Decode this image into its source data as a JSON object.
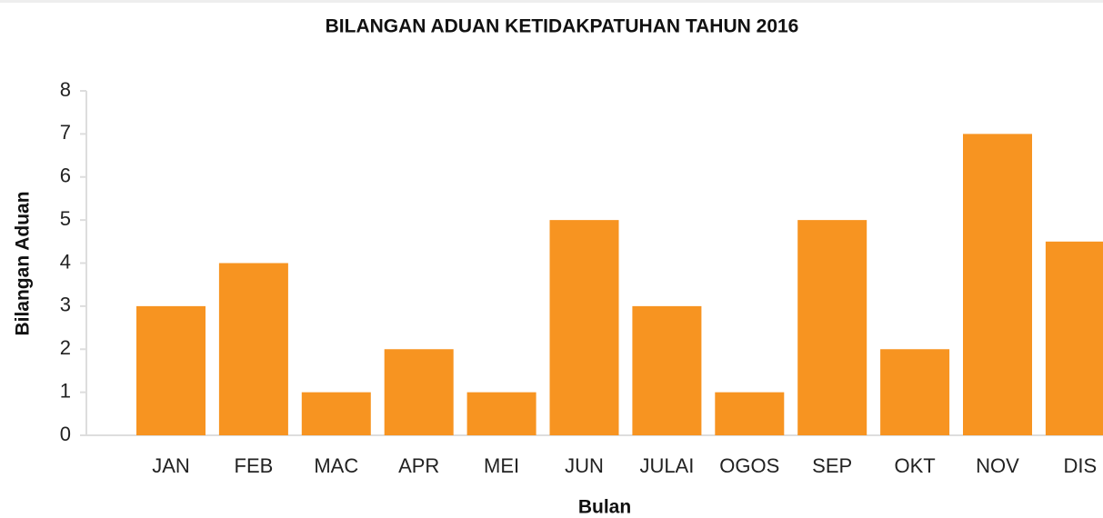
{
  "chart_data": {
    "type": "bar",
    "title": "BILANGAN ADUAN KETIDAKPATUHAN TAHUN 2016",
    "x_label": "Bulan",
    "y_label": "Bilangan Aduan",
    "categories": [
      "JAN",
      "FEB",
      "MAC",
      "APR",
      "MEI",
      "JUN",
      "JULAI",
      "OGOS",
      "SEP",
      "OKT",
      "NOV",
      "DIS"
    ],
    "values": [
      3,
      4,
      1,
      2,
      1,
      5,
      3,
      1,
      5,
      2,
      7,
      4.5
    ],
    "color": "#f79421",
    "ylim": [
      0,
      8
    ],
    "yticks": [
      0,
      1,
      2,
      3,
      4,
      5,
      6,
      7,
      8
    ],
    "grid": false
  }
}
